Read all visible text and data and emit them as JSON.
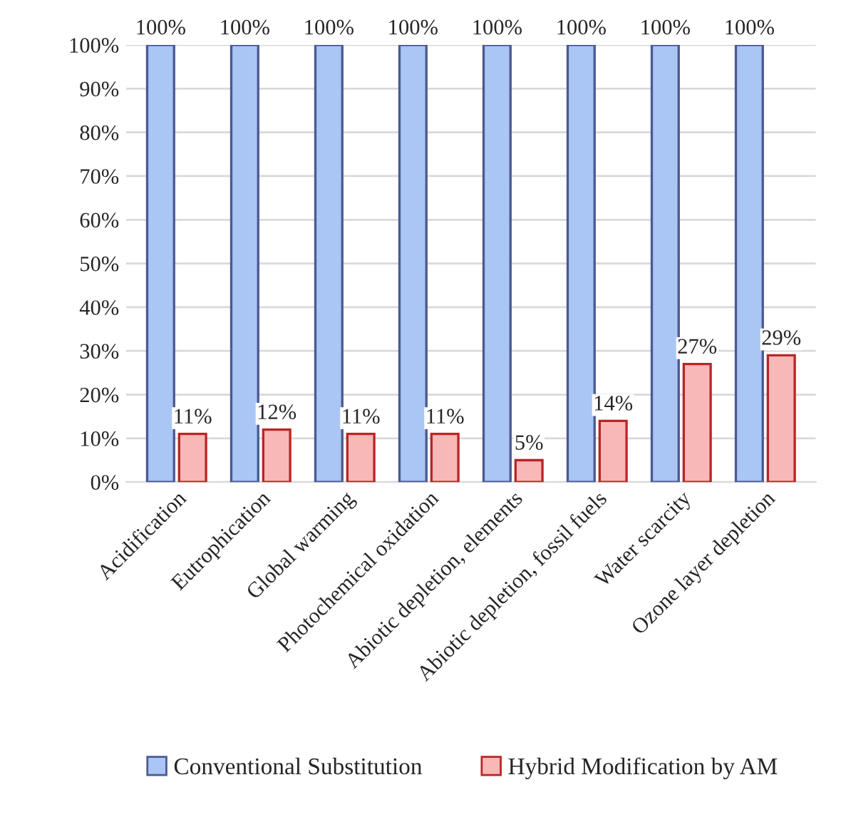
{
  "chart_data": {
    "type": "bar",
    "categories": [
      "Acidification",
      "Eutrophication",
      "Global warming",
      "Photochemical oxidation",
      "Abiotic depletion, elements",
      "Abiotic depletion, fossil fuels",
      "Water scarcity",
      "Ozone layer depletion"
    ],
    "series": [
      {
        "name": "Conventional Substitution",
        "color": "#a9c6f5",
        "values": [
          100,
          100,
          100,
          100,
          100,
          100,
          100,
          100
        ],
        "value_labels": [
          "100%",
          "100%",
          "100%",
          "100%",
          "100%",
          "100%",
          "100%",
          "100%"
        ]
      },
      {
        "name": "Hybrid Modification by AM",
        "color": "#f9b8b8",
        "values": [
          11,
          12,
          11,
          11,
          5,
          14,
          27,
          29
        ],
        "value_labels": [
          "11%",
          "12%",
          "11%",
          "11%",
          "5%",
          "14%",
          "27%",
          "29%"
        ]
      }
    ],
    "ylim": [
      0,
      100
    ],
    "yticks": [
      {
        "value": 0,
        "label": "0%"
      },
      {
        "value": 10,
        "label": "10%"
      },
      {
        "value": 20,
        "label": "20%"
      },
      {
        "value": 30,
        "label": "30%"
      },
      {
        "value": 40,
        "label": "40%"
      },
      {
        "value": 50,
        "label": "50%"
      },
      {
        "value": 60,
        "label": "60%"
      },
      {
        "value": 70,
        "label": "70%"
      },
      {
        "value": 80,
        "label": "80%"
      },
      {
        "value": 90,
        "label": "90%"
      },
      {
        "value": 100,
        "label": "100%"
      }
    ],
    "grid": "y",
    "legend": "bottom"
  }
}
